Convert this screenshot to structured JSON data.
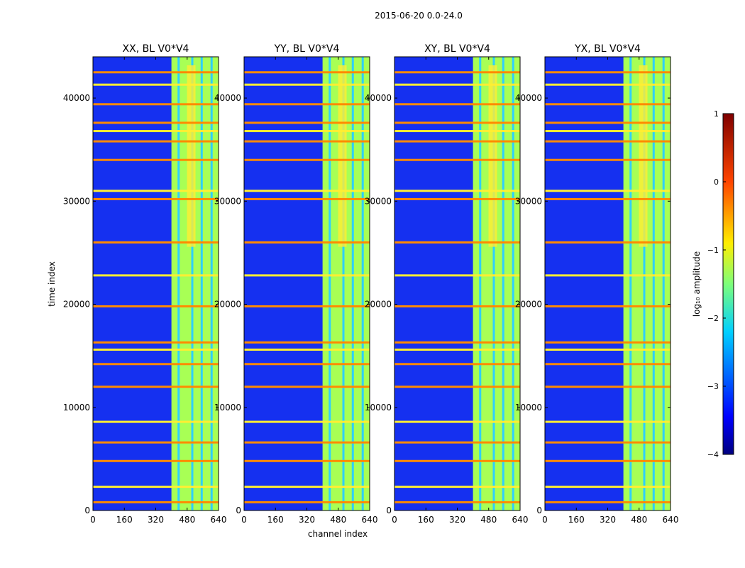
{
  "figure": {
    "suptitle": "2015-06-20 0.0-24.0",
    "shared_ylabel": "time index",
    "shared_xlabel": "channel index"
  },
  "colorbar": {
    "label": "log₁₀ amplitude",
    "ticks": [
      "1",
      "0",
      "−1",
      "−2",
      "−3",
      "−4"
    ],
    "range": [
      -4,
      1
    ],
    "colormap": "jet"
  },
  "chart_data": {
    "type": "heatmap",
    "x": {
      "label": "channel index",
      "range": [
        0,
        640
      ],
      "ticks": [
        0,
        160,
        320,
        480,
        640
      ]
    },
    "y": {
      "label": "time index",
      "range": [
        0,
        44000
      ],
      "ticks": [
        0,
        10000,
        20000,
        30000,
        40000
      ]
    },
    "value": {
      "label": "log10 amplitude",
      "range": [
        -4,
        1
      ]
    },
    "panels": [
      {
        "title": "XX, BL V0*V4",
        "xtick_labels": [
          "0",
          "160",
          "320",
          "480",
          "640"
        ],
        "ytick_labels": [
          "0",
          "10000",
          "20000",
          "30000",
          "40000"
        ]
      },
      {
        "title": "YY, BL V0*V4",
        "xtick_labels": [
          "0",
          "160",
          "320",
          "480",
          "640"
        ],
        "ytick_labels": [
          "0",
          "10000",
          "20000",
          "30000",
          "40000"
        ]
      },
      {
        "title": "XY, BL V0*V4",
        "xtick_labels": [
          "0",
          "160",
          "320",
          "480",
          "640"
        ],
        "ytick_labels": [
          "0",
          "10000",
          "20000",
          "30000",
          "40000"
        ]
      },
      {
        "title": "YX, BL V0*V4",
        "xtick_labels": [
          "0",
          "160",
          "320",
          "480",
          "640"
        ],
        "ytick_labels": [
          "0",
          "10000",
          "20000",
          "30000",
          "40000"
        ]
      }
    ],
    "bright_channel_bands": [
      [
        400,
        640
      ]
    ],
    "rfi_time_rows": [
      800,
      2300,
      4800,
      6600,
      8600,
      12000,
      14200,
      15600,
      16300,
      19800,
      22800,
      26000,
      30200,
      31000,
      34000,
      35800,
      36800,
      37600,
      39400,
      41300,
      42500
    ]
  }
}
